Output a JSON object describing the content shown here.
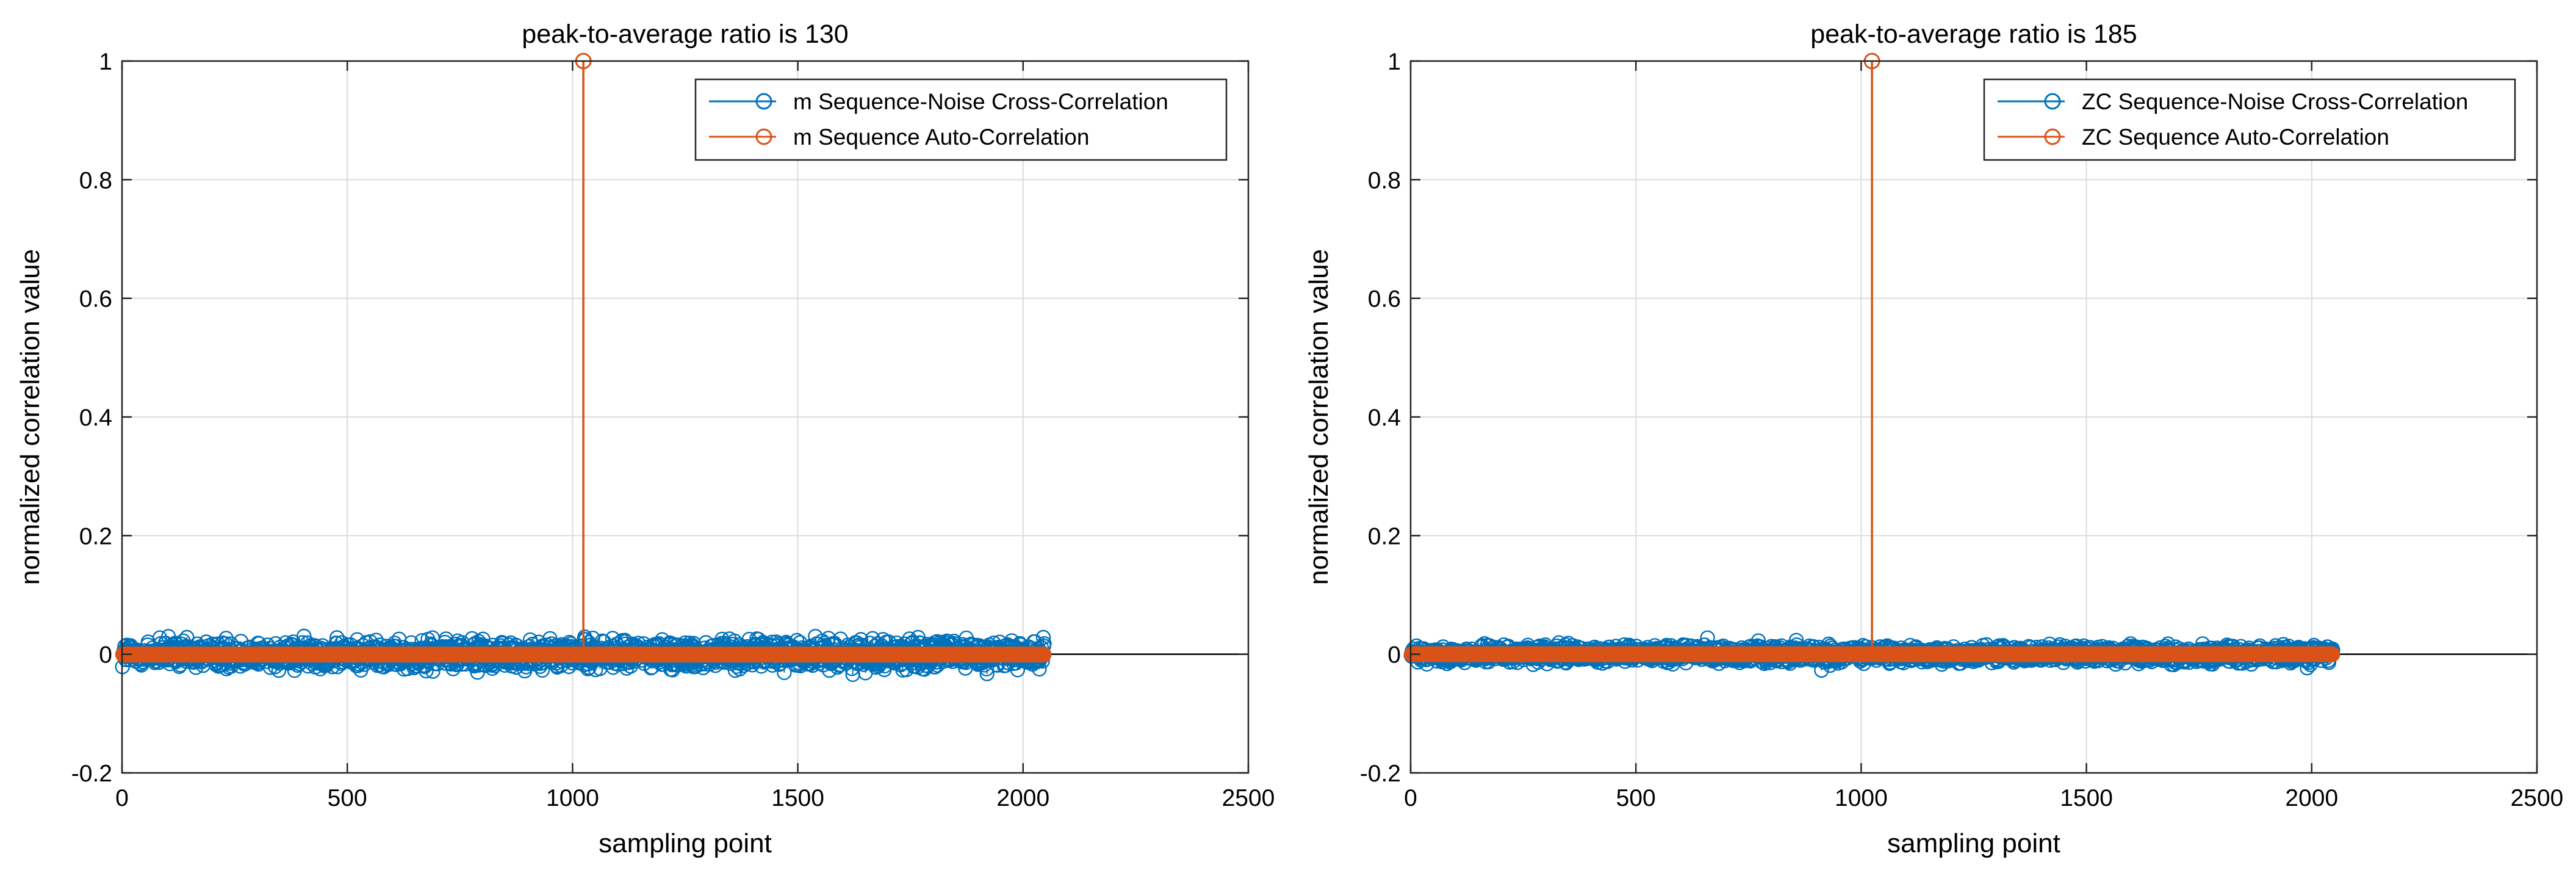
{
  "colors": {
    "cross": "#0072BD",
    "auto": "#D95319",
    "grid": "#dcdcdc",
    "axis": "#262626",
    "zero_line": "#000000"
  },
  "chart_data": [
    {
      "type": "stem",
      "title": "peak-to-average ratio is 130",
      "xlabel": "sampling point",
      "ylabel": "normalized correlation value",
      "xlim": [
        0,
        2500
      ],
      "ylim": [
        -0.2,
        1
      ],
      "xticks": [
        0,
        500,
        1000,
        1500,
        2000,
        2500
      ],
      "xtick_labels": [
        "0",
        "500",
        "1000",
        "1500",
        "2000",
        "2500"
      ],
      "yticks": [
        -0.2,
        0,
        0.2,
        0.4,
        0.6,
        0.8,
        1
      ],
      "ytick_labels": [
        "-0.2",
        "0",
        "0.2",
        "0.4",
        "0.6",
        "0.8",
        "1"
      ],
      "grid": true,
      "legend_position": "top-right",
      "series": [
        {
          "name": "m Sequence-Noise Cross-Correlation",
          "color_key": "cross",
          "x_range": [
            1,
            2047
          ],
          "noise_amplitude": 0.02,
          "max_abs": 0.035
        },
        {
          "name": "m Sequence Auto-Correlation",
          "color_key": "auto",
          "x_range": [
            1,
            2047
          ],
          "baseline": -0.0005,
          "peak_x": 1024,
          "peak_value": 1
        }
      ]
    },
    {
      "type": "stem",
      "title": "peak-to-average ratio is 185",
      "xlabel": "sampling point",
      "ylabel": "normalized correlation value",
      "xlim": [
        0,
        2500
      ],
      "ylim": [
        -0.2,
        1
      ],
      "xticks": [
        0,
        500,
        1000,
        1500,
        2000,
        2500
      ],
      "xtick_labels": [
        "0",
        "500",
        "1000",
        "1500",
        "2000",
        "2500"
      ],
      "yticks": [
        -0.2,
        0,
        0.2,
        0.4,
        0.6,
        0.8,
        1
      ],
      "ytick_labels": [
        "-0.2",
        "0",
        "0.2",
        "0.4",
        "0.6",
        "0.8",
        "1"
      ],
      "grid": true,
      "legend_position": "top-right",
      "series": [
        {
          "name": "ZC Sequence-Noise Cross-Correlation",
          "color_key": "cross",
          "x_range": [
            1,
            2047
          ],
          "noise_amplitude": 0.012,
          "max_abs": 0.028
        },
        {
          "name": "ZC Sequence Auto-Correlation",
          "color_key": "auto",
          "x_range": [
            1,
            2047
          ],
          "baseline": 0,
          "peak_x": 1024,
          "peak_value": 1
        }
      ]
    }
  ]
}
